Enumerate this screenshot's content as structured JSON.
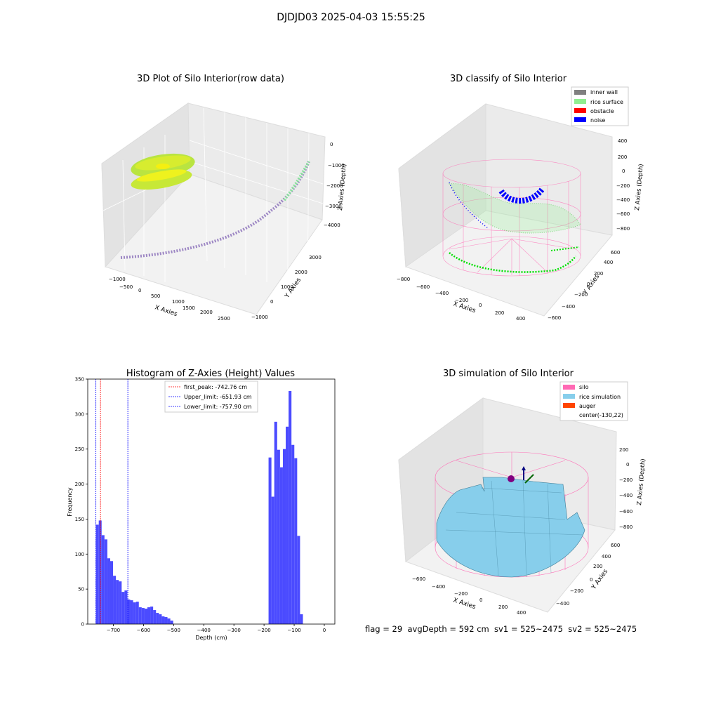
{
  "title": "DJDJD03 2025-04-03 15:55:25",
  "footer": "flag = 29  avgDepth = 592 cm  sv1 = 525~2475  sv2 = 525~2475",
  "chart_data": [
    {
      "type": "scatter3d",
      "title": "3D Plot of Silo Interior(row data)",
      "xlabel": "X Axies",
      "ylabel": "Y Axies",
      "zlabel": "Z Axies (Depth)",
      "xticks": [
        "−1000",
        "−500",
        "0",
        "500",
        "1000",
        "1500",
        "2000",
        "2500"
      ],
      "yticks": [
        "−1000",
        "0",
        "1000",
        "2000",
        "3000"
      ],
      "zticks": [
        "0",
        "−1000",
        "−2000",
        "−3000",
        "−4000"
      ],
      "colors": {
        "surface": "#c9e830",
        "trail": "#9d87c4",
        "trail_end": "#86e39a"
      }
    },
    {
      "type": "scatter3d",
      "title": "3D classify of Silo Interior",
      "xlabel": "X Axies",
      "ylabel": "Y Axies",
      "zlabel": "Z Axies (Depth)",
      "xticks": [
        "−800",
        "−600",
        "−400",
        "−200",
        "0",
        "200",
        "400"
      ],
      "yticks": [
        "−600",
        "−400",
        "−200",
        "0",
        "200",
        "400",
        "600"
      ],
      "zticks": [
        "400",
        "200",
        "0",
        "−200",
        "−400",
        "−600",
        "−800"
      ],
      "legend": [
        {
          "label": "inner wall",
          "color": "#808080"
        },
        {
          "label": "rice surface",
          "color": "#90ee90"
        },
        {
          "label": "obstacle",
          "color": "#ff0000"
        },
        {
          "label": "noise",
          "color": "#0000ff"
        }
      ],
      "legend_loc": "upper right"
    },
    {
      "type": "bar",
      "title": "Histogram of Z-Axies (Height) Values",
      "xlabel": "Depth (cm)",
      "ylabel": "Frequency",
      "xlim": [
        -785,
        35
      ],
      "ylim": [
        0,
        350
      ],
      "xticks": [
        -700,
        -600,
        -500,
        -400,
        -300,
        -200,
        -100,
        0
      ],
      "xtick_labels": [
        "−700",
        "−600",
        "−500",
        "−400",
        "−300",
        "−200",
        "−100",
        "0"
      ],
      "yticks": [
        0,
        50,
        100,
        150,
        200,
        250,
        300,
        350
      ],
      "bin_width": 9.5,
      "bins": [
        {
          "x": -758,
          "v": 142
        },
        {
          "x": -748.5,
          "v": 148
        },
        {
          "x": -739,
          "v": 127
        },
        {
          "x": -729.5,
          "v": 121
        },
        {
          "x": -720,
          "v": 94
        },
        {
          "x": -710.5,
          "v": 90
        },
        {
          "x": -701,
          "v": 69
        },
        {
          "x": -691.5,
          "v": 63
        },
        {
          "x": -682,
          "v": 61
        },
        {
          "x": -672.5,
          "v": 46
        },
        {
          "x": -663,
          "v": 48
        },
        {
          "x": -653.5,
          "v": 35
        },
        {
          "x": -644,
          "v": 34
        },
        {
          "x": -634.5,
          "v": 31
        },
        {
          "x": -625,
          "v": 32
        },
        {
          "x": -615.5,
          "v": 24
        },
        {
          "x": -606,
          "v": 23
        },
        {
          "x": -596.5,
          "v": 22
        },
        {
          "x": -587,
          "v": 24
        },
        {
          "x": -577.5,
          "v": 25
        },
        {
          "x": -568,
          "v": 20
        },
        {
          "x": -558.5,
          "v": 16
        },
        {
          "x": -549,
          "v": 14
        },
        {
          "x": -539.5,
          "v": 11
        },
        {
          "x": -530,
          "v": 10
        },
        {
          "x": -520.5,
          "v": 8
        },
        {
          "x": -511,
          "v": 5
        },
        {
          "x": -185,
          "v": 238
        },
        {
          "x": -175.5,
          "v": 182
        },
        {
          "x": -166,
          "v": 289
        },
        {
          "x": -156.5,
          "v": 249
        },
        {
          "x": -147,
          "v": 224
        },
        {
          "x": -137.5,
          "v": 250
        },
        {
          "x": -128,
          "v": 282
        },
        {
          "x": -118.5,
          "v": 333
        },
        {
          "x": -109,
          "v": 256
        },
        {
          "x": -99.5,
          "v": 237
        },
        {
          "x": -90,
          "v": 126
        },
        {
          "x": -80.5,
          "v": 14
        }
      ],
      "bar_color": "#4b4bff",
      "vlines": [
        {
          "x": -742.76,
          "color": "#ff0000",
          "label": "first_peak: -742.76 cm"
        },
        {
          "x": -651.93,
          "color": "#0000ff",
          "label": "Upper_limit: -651.93 cm"
        },
        {
          "x": -757.9,
          "color": "#0000ff",
          "label": "Lower_limit: -757.90 cm"
        }
      ]
    },
    {
      "type": "surface3d",
      "title": "3D simulation of Silo Interior",
      "xlabel": "X Axies",
      "ylabel": "Y Axies",
      "zlabel": "Z Axies (Depth)",
      "xticks": [
        "−600",
        "−400",
        "−200",
        "0",
        "200",
        "400"
      ],
      "yticks": [
        "−400",
        "−200",
        "0",
        "200",
        "400",
        "600"
      ],
      "zticks": [
        "200",
        "0",
        "−200",
        "−400",
        "−600",
        "−800"
      ],
      "legend": [
        {
          "label": "silo",
          "color": "#ff69b4"
        },
        {
          "label": "rice simulation",
          "color": "#87ceeb"
        },
        {
          "label": "auger",
          "color": "#ff4500"
        },
        {
          "label": "center(-130,22)",
          "color": "none"
        }
      ],
      "legend_loc": "upper right"
    }
  ]
}
